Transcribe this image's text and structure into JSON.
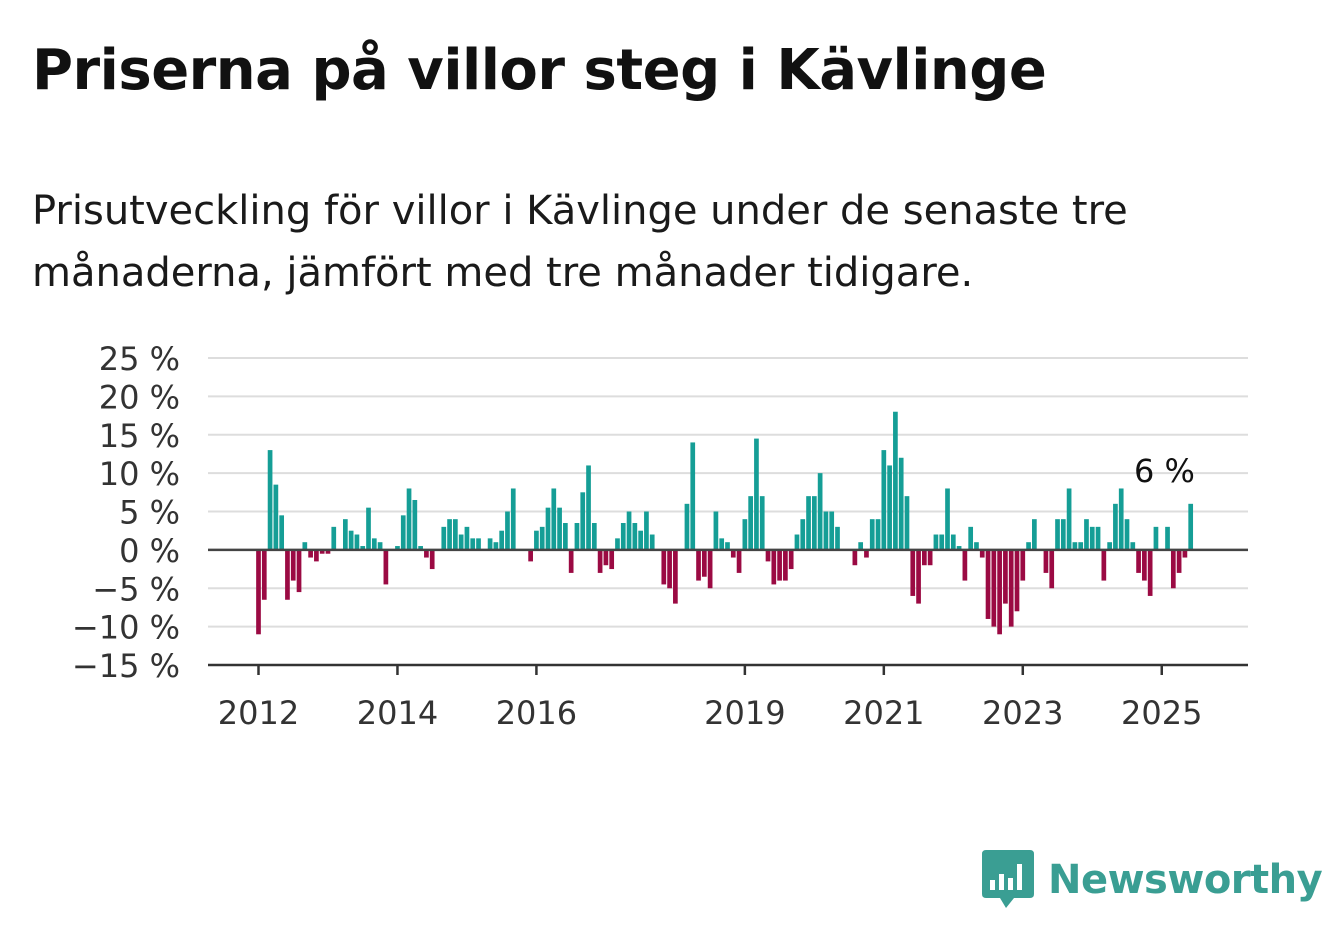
{
  "title": "Priserna på villor steg i Kävlinge",
  "subtitle": "Prisutveckling för villor i Kävlinge under de senaste tre månaderna, jämfört med tre månader tidigare.",
  "logo_text": "Newsworthy",
  "colors": {
    "positive": "#159e96",
    "negative": "#9b0a43",
    "grid": "#dddddd",
    "axis": "#333333"
  },
  "chart_data": {
    "type": "bar",
    "title": "Priserna på villor steg i Kävlinge",
    "ylabel": "",
    "xlabel": "",
    "ylim": [
      -15,
      25
    ],
    "y_ticks": [
      25,
      20,
      15,
      10,
      5,
      0,
      -5,
      -10,
      -15
    ],
    "y_tick_labels": [
      "25 %",
      "20 %",
      "15 %",
      "10 %",
      "5 %",
      "0 %",
      "−5 %",
      "−10 %",
      "−15 %"
    ],
    "x_ticks": [
      2012,
      2014,
      2016,
      2019,
      2021,
      2023,
      2025
    ],
    "x_tick_labels": [
      "2012",
      "2014",
      "2016",
      "2019",
      "2021",
      "2023",
      "2025"
    ],
    "x_start": "2012-01",
    "annotation": {
      "text": "6 %",
      "x": "2025-07"
    },
    "values": [
      -11,
      -6.5,
      13,
      8.5,
      4.5,
      -6.5,
      -4,
      -5.5,
      1,
      -1,
      -1.5,
      -0.5,
      -0.5,
      3,
      0,
      4,
      2.5,
      2,
      0.5,
      5.5,
      1.5,
      1,
      -4.5,
      0,
      0.5,
      4.5,
      8,
      6.5,
      0.5,
      -1,
      -2.5,
      0,
      3,
      4,
      4,
      2,
      3,
      1.5,
      1.5,
      0,
      1.5,
      1,
      2.5,
      5,
      8,
      0,
      0,
      -1.5,
      2.5,
      3,
      5.5,
      8,
      5.5,
      3.5,
      -3,
      3.5,
      7.5,
      11,
      3.5,
      -3,
      -2,
      -2.5,
      1.5,
      3.5,
      5,
      3.5,
      2.5,
      5,
      2,
      0,
      -4.5,
      -5,
      -7,
      0,
      6,
      14,
      -4,
      -3.5,
      -5,
      5,
      1.5,
      1,
      -1,
      -3,
      4,
      7,
      14.5,
      7,
      -1.5,
      -4.5,
      -4,
      -4,
      -2.5,
      2,
      4,
      7,
      7,
      10,
      5,
      5,
      3,
      0,
      0,
      -2,
      1,
      -1,
      4,
      4,
      13,
      11,
      18,
      12,
      7,
      -6,
      -7,
      -2,
      -2,
      2,
      2,
      8,
      2,
      0.5,
      -4,
      3,
      1,
      -1,
      -9,
      -10,
      -11,
      -7,
      -10,
      -8,
      -4,
      1,
      4,
      0,
      -3,
      -5,
      4,
      4,
      8,
      1,
      1,
      4,
      3,
      3,
      -4,
      1,
      6,
      8,
      4,
      1,
      -3,
      -4,
      -6,
      3,
      0,
      3,
      -5,
      -3,
      -1,
      6
    ]
  }
}
